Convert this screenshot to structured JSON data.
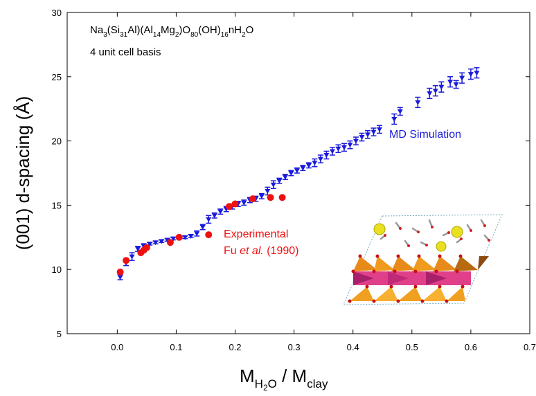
{
  "chart_data": {
    "type": "scatter",
    "formula_parts": [
      "Na",
      "3",
      "(Si",
      "31",
      "Al)(Al",
      "14",
      "Mg",
      "2",
      ")O",
      "80",
      "(OH)",
      "16",
      "nH",
      "2",
      "O"
    ],
    "subtitle": "4 unit cell basis",
    "x_label_parts": [
      "M",
      "H",
      "2",
      "O",
      " / M",
      "clay"
    ],
    "y_label": "(001) d-spacing  (Å)",
    "reference_parts": [
      "Fu ",
      "et al.",
      " (1990)"
    ],
    "xlim": [
      -0.085,
      0.7
    ],
    "ylim": [
      5,
      30
    ],
    "xticks": [
      {
        "value": 0,
        "label": "0.0"
      },
      0.1,
      0.2,
      0.3,
      0.4,
      0.5,
      0.6,
      0.7
    ],
    "yticks": [
      5,
      10,
      15,
      20,
      25,
      30
    ],
    "series": [
      {
        "name": "MD Simulation",
        "color": "#1a1adc",
        "marker": "triangle-down",
        "x": [
          0.005,
          0.015,
          0.025,
          0.035,
          0.045,
          0.055,
          0.065,
          0.075,
          0.085,
          0.095,
          0.105,
          0.115,
          0.125,
          0.135,
          0.145,
          0.155,
          0.165,
          0.175,
          0.185,
          0.195,
          0.205,
          0.215,
          0.225,
          0.235,
          0.245,
          0.255,
          0.265,
          0.275,
          0.285,
          0.295,
          0.305,
          0.315,
          0.325,
          0.335,
          0.345,
          0.355,
          0.365,
          0.375,
          0.385,
          0.395,
          0.405,
          0.415,
          0.425,
          0.435,
          0.445,
          0.47,
          0.48,
          0.51,
          0.53,
          0.54,
          0.55,
          0.565,
          0.575,
          0.585,
          0.6,
          0.61
        ],
        "values": [
          9.4,
          10.5,
          11.0,
          11.6,
          11.8,
          12.0,
          12.1,
          12.2,
          12.3,
          12.4,
          12.5,
          12.5,
          12.6,
          12.8,
          13.3,
          13.9,
          14.2,
          14.5,
          14.7,
          14.9,
          15.1,
          15.2,
          15.4,
          15.5,
          15.7,
          16.1,
          16.6,
          16.9,
          17.2,
          17.5,
          17.7,
          17.9,
          18.1,
          18.3,
          18.6,
          18.9,
          19.2,
          19.4,
          19.5,
          19.7,
          20.0,
          20.3,
          20.5,
          20.7,
          20.9,
          21.7,
          22.3,
          23.0,
          23.7,
          23.9,
          24.2,
          24.6,
          24.4,
          24.9,
          25.2,
          25.3
        ],
        "errors": [
          0.2,
          0.2,
          0.3,
          0.2,
          0.2,
          0.1,
          0.1,
          0.1,
          0.1,
          0.1,
          0.1,
          0.1,
          0.1,
          0.2,
          0.2,
          0.3,
          0.2,
          0.2,
          0.2,
          0.2,
          0.2,
          0.2,
          0.2,
          0.2,
          0.2,
          0.3,
          0.3,
          0.2,
          0.2,
          0.2,
          0.2,
          0.2,
          0.2,
          0.3,
          0.3,
          0.3,
          0.3,
          0.3,
          0.3,
          0.3,
          0.3,
          0.3,
          0.3,
          0.3,
          0.3,
          0.4,
          0.3,
          0.4,
          0.4,
          0.4,
          0.4,
          0.4,
          0.3,
          0.4,
          0.4,
          0.4
        ]
      },
      {
        "name": "Experimental",
        "color": "#ee1111",
        "marker": "circle",
        "x": [
          0.005,
          0.015,
          0.04,
          0.045,
          0.05,
          0.09,
          0.105,
          0.155,
          0.19,
          0.2,
          0.23,
          0.26,
          0.28
        ],
        "values": [
          9.8,
          10.7,
          11.3,
          11.5,
          11.7,
          12.1,
          12.5,
          12.7,
          14.9,
          15.1,
          15.5,
          15.6,
          15.6
        ]
      }
    ]
  }
}
